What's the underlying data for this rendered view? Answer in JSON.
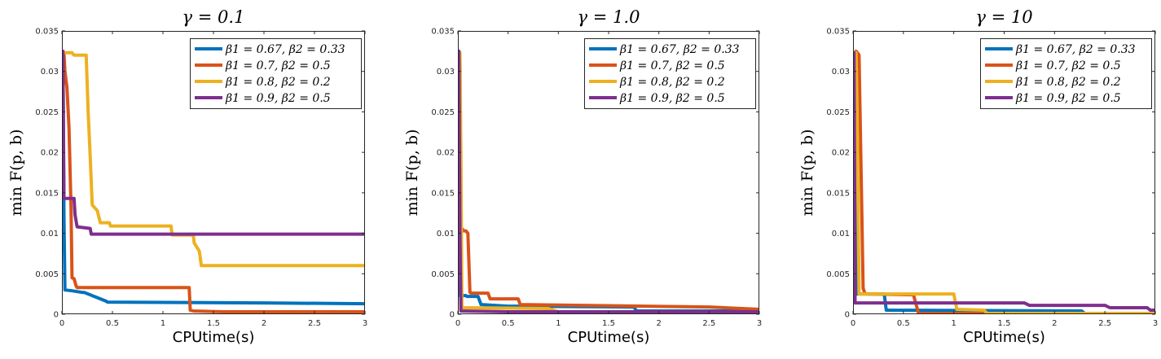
{
  "chart_data": [
    {
      "type": "line",
      "title": "γ = 0.1",
      "xlabel": "CPUtime(s)",
      "ylabel": "min F(p, b)",
      "xlim": [
        0,
        3
      ],
      "ylim": [
        0,
        0.035
      ],
      "xticks": [
        "0",
        "0.5",
        "1",
        "1.5",
        "2",
        "2.5",
        "3"
      ],
      "yticks": [
        "0",
        "0.005",
        "0.01",
        "0.015",
        "0.02",
        "0.025",
        "0.03",
        "0.035"
      ],
      "legend_position": "top-right",
      "series": [
        {
          "name": "β1 = 0.67, β2 = 0.33",
          "color": "#0072BD",
          "x": [
            0,
            0.01,
            0.02,
            0.03,
            0.1,
            0.2,
            0.22,
            0.44,
            0.45,
            2.0,
            3.0
          ],
          "y": [
            0.0323,
            0.0323,
            0.012,
            0.003,
            0.0029,
            0.0027,
            0.0027,
            0.0016,
            0.0015,
            0.0014,
            0.0013
          ]
        },
        {
          "name": "β1 = 0.7, β2 = 0.5",
          "color": "#D95319",
          "x": [
            0,
            0.02,
            0.03,
            0.05,
            0.07,
            0.09,
            0.1,
            0.12,
            0.14,
            0.15,
            1.26,
            1.27,
            1.3,
            1.6,
            3.0
          ],
          "y": [
            0.0323,
            0.0323,
            0.03,
            0.028,
            0.023,
            0.013,
            0.0045,
            0.0044,
            0.0035,
            0.0033,
            0.0033,
            0.0005,
            0.0004,
            0.0003,
            0.0003
          ]
        },
        {
          "name": "β1 = 0.8, β2 = 0.2",
          "color": "#EDB120",
          "x": [
            0,
            0.1,
            0.12,
            0.24,
            0.26,
            0.28,
            0.3,
            0.35,
            0.38,
            0.47,
            0.48,
            1.08,
            1.09,
            1.3,
            1.31,
            1.36,
            1.38,
            3.0
          ],
          "y": [
            0.0323,
            0.0323,
            0.032,
            0.032,
            0.025,
            0.0195,
            0.0135,
            0.0128,
            0.0113,
            0.0113,
            0.0109,
            0.0109,
            0.0098,
            0.0098,
            0.0088,
            0.0078,
            0.006,
            0.006
          ]
        },
        {
          "name": "β1 = 0.9, β2 = 0.5",
          "color": "#7E2F8E",
          "x": [
            0,
            0.01,
            0.02,
            0.12,
            0.13,
            0.15,
            0.28,
            0.29,
            3.0
          ],
          "y": [
            0.0325,
            0.0325,
            0.0143,
            0.0143,
            0.0123,
            0.0108,
            0.0106,
            0.0099,
            0.0099
          ]
        }
      ]
    },
    {
      "type": "line",
      "title": "γ = 1.0",
      "xlabel": "CPUtime(s)",
      "ylabel": "min F(p, b)",
      "xlim": [
        0,
        3
      ],
      "ylim": [
        0,
        0.035
      ],
      "xticks": [
        "0",
        "0.5",
        "1",
        "1.5",
        "2",
        "2.5",
        "3"
      ],
      "yticks": [
        "0",
        "0.005",
        "0.01",
        "0.015",
        "0.02",
        "0.025",
        "0.03",
        "0.035"
      ],
      "legend_position": "top-right",
      "series": [
        {
          "name": "β1 = 0.67, β2 = 0.33",
          "color": "#0072BD",
          "x": [
            0,
            0.01,
            0.02,
            0.08,
            0.09,
            0.2,
            0.23,
            0.5,
            1.75,
            1.78,
            3.0
          ],
          "y": [
            0.0323,
            0.0323,
            0.0023,
            0.0023,
            0.0022,
            0.0022,
            0.0012,
            0.001,
            0.0009,
            0.0004,
            0.0004
          ]
        },
        {
          "name": "β1 = 0.7, β2 = 0.5",
          "color": "#D95319",
          "x": [
            0,
            0.02,
            0.03,
            0.06,
            0.08,
            0.1,
            0.12,
            0.13,
            0.3,
            0.32,
            0.6,
            0.62,
            2.5,
            3.0
          ],
          "y": [
            0.0323,
            0.0323,
            0.0107,
            0.0103,
            0.0103,
            0.01,
            0.0027,
            0.0026,
            0.0026,
            0.0019,
            0.0019,
            0.0012,
            0.0009,
            0.0006
          ]
        },
        {
          "name": "β1 = 0.8, β2 = 0.2",
          "color": "#EDB120",
          "x": [
            0,
            0.02,
            0.03,
            0.04,
            0.05,
            0.9,
            1.0,
            3.0
          ],
          "y": [
            0.0323,
            0.0323,
            0.02,
            0.001,
            0.0008,
            0.0007,
            0.0003,
            0.0002
          ]
        },
        {
          "name": "β1 = 0.9, β2 = 0.5",
          "color": "#7E2F8E",
          "x": [
            0,
            0.01,
            0.02,
            0.03,
            0.5,
            3.0
          ],
          "y": [
            0.0325,
            0.0325,
            0.01,
            0.0004,
            0.0003,
            0.0003
          ]
        }
      ]
    },
    {
      "type": "line",
      "title": "γ = 10",
      "xlabel": "CPUtime(s)",
      "ylabel": "min F(p, b)",
      "xlim": [
        0,
        3
      ],
      "ylim": [
        0,
        0.035
      ],
      "xticks": [
        "0",
        "0.5",
        "1",
        "1.5",
        "2",
        "2.5",
        "3"
      ],
      "yticks": [
        "0",
        "0.005",
        "0.01",
        "0.015",
        "0.02",
        "0.025",
        "0.03",
        "0.035"
      ],
      "legend_position": "top-right",
      "series": [
        {
          "name": "β1 = 0.67, β2 = 0.33",
          "color": "#0072BD",
          "x": [
            0,
            0.02,
            0.03,
            0.31,
            0.33,
            2.27,
            2.3,
            3.0
          ],
          "y": [
            0.0323,
            0.0323,
            0.0025,
            0.0025,
            0.0005,
            0.0004,
            0.0001,
            0.0001
          ]
        },
        {
          "name": "β1 = 0.7, β2 = 0.5",
          "color": "#D95319",
          "x": [
            0,
            0.02,
            0.03,
            0.05,
            0.06,
            0.1,
            0.12,
            0.6,
            0.65,
            3.0
          ],
          "y": [
            0.032,
            0.032,
            0.0325,
            0.0322,
            0.032,
            0.0032,
            0.0025,
            0.0024,
            0.0001,
            0.0001
          ]
        },
        {
          "name": "β1 = 0.8, β2 = 0.2",
          "color": "#EDB120",
          "x": [
            0,
            0.03,
            0.04,
            0.06,
            1.0,
            1.03,
            1.3,
            1.33,
            3.0
          ],
          "y": [
            0.0323,
            0.0323,
            0.026,
            0.0025,
            0.0025,
            0.0006,
            0.0005,
            0.0001,
            0.0001
          ]
        },
        {
          "name": "β1 = 0.9, β2 = 0.5",
          "color": "#7E2F8E",
          "x": [
            0,
            0.01,
            0.02,
            0.1,
            0.11,
            1.7,
            1.75,
            2.5,
            2.55,
            2.92,
            2.95,
            3.0
          ],
          "y": [
            0.0323,
            0.0323,
            0.0014,
            0.0014,
            0.0014,
            0.0014,
            0.0011,
            0.0011,
            0.0008,
            0.0008,
            0.0005,
            0.0005
          ]
        }
      ]
    }
  ]
}
